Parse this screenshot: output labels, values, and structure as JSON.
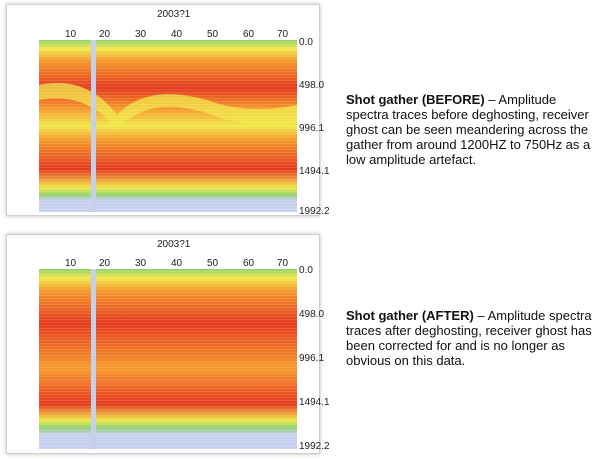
{
  "panels": [
    {
      "id": "before",
      "header_fragment": "2003?1",
      "x_ticks": [
        "10",
        "20",
        "30",
        "40",
        "50",
        "60",
        "70"
      ],
      "y_ticks": [
        "0.0",
        "498.0",
        "996.1",
        "1494.1",
        "1992.2"
      ],
      "caption_title": "Shot gather (BEFORE)",
      "caption_body": " – Amplitude spectra traces before deghosting, receiver ghost can be seen meandering across the gather from around 1200HZ to 750Hz as a low amplitude artefact."
    },
    {
      "id": "after",
      "header_fragment": "2003?1",
      "x_ticks": [
        "10",
        "20",
        "30",
        "40",
        "50",
        "60",
        "70"
      ],
      "y_ticks": [
        "0.0",
        "498.0",
        "996.1",
        "1494.1",
        "1992.2"
      ],
      "caption_title": "Shot gather (AFTER)",
      "caption_body": " – Amplitude spectra traces after deghosting, receiver ghost has been corrected for and is no longer as obvious on this data."
    }
  ],
  "colors": {
    "low": "#c8d0f0",
    "green": "#8fd36a",
    "yellow": "#f1e84a",
    "orange": "#f59a2a",
    "red": "#e53a1e",
    "deep_red": "#cc1a10"
  }
}
